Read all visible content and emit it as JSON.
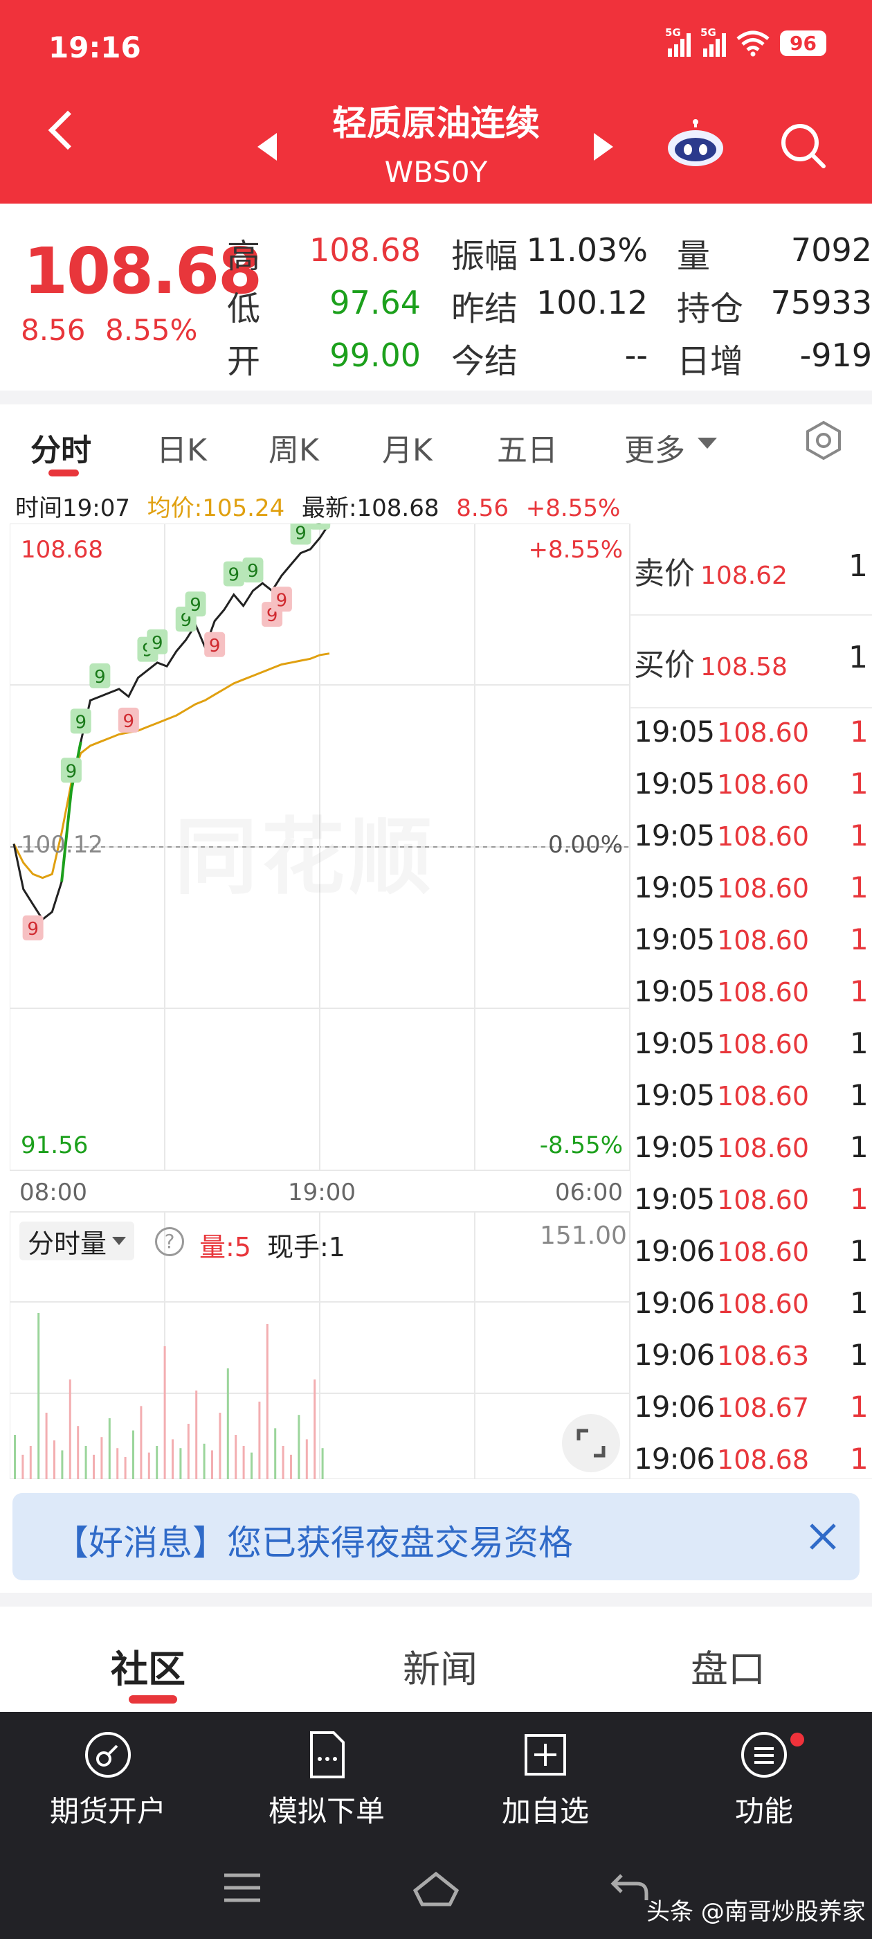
{
  "status_bar": {
    "time": "19:16",
    "signal1": "5G",
    "signal2": "5G",
    "battery": "96"
  },
  "header": {
    "title": "轻质原油连续",
    "code": "WBS0Y"
  },
  "quote": {
    "price": "108.68",
    "change": "8.56",
    "change_pct": "8.55%",
    "stats": [
      {
        "label": "高",
        "value": "108.68",
        "color": "red"
      },
      {
        "label": "低",
        "value": "97.64",
        "color": "green"
      },
      {
        "label": "开",
        "value": "99.00",
        "color": "green"
      },
      {
        "label": "振幅",
        "value": "11.03%",
        "color": "dark"
      },
      {
        "label": "昨结",
        "value": "100.12",
        "color": "dark"
      },
      {
        "label": "今结",
        "value": "--",
        "color": "dark"
      },
      {
        "label": "量",
        "value": "7092",
        "color": "dark"
      },
      {
        "label": "持仓",
        "value": "75933",
        "color": "dark"
      },
      {
        "label": "日增",
        "value": "-919",
        "color": "dark"
      }
    ]
  },
  "tabs": {
    "items": [
      "分时",
      "日K",
      "周K",
      "月K",
      "五日",
      "更多"
    ],
    "active": "分时"
  },
  "info_line": {
    "time": "时间19:07",
    "avg": "均价:105.24",
    "latest": "最新:108.68",
    "chg": "8.56",
    "pct": "+8.55%"
  },
  "chart": {
    "y_top": "108.68",
    "y_mid": "100.12",
    "y_bottom": "91.56",
    "pct_top": "+8.55%",
    "pct_mid": "0.00%",
    "pct_bottom": "-8.55%",
    "x_labels": [
      "08:00",
      "19:00",
      "06:00"
    ],
    "marker_label": "9",
    "watermark": "同花顺",
    "colors": {
      "price_line": "#222222",
      "up_segment": "#1ca01c",
      "avg_line": "#e0a010",
      "up": "#e8363b",
      "down": "#1ca01c"
    }
  },
  "chart_data": {
    "type": "line",
    "x_range": [
      "08:00",
      "06:00"
    ],
    "ylim": [
      91.56,
      108.68
    ],
    "reference": 100.12,
    "series": [
      {
        "name": "最新",
        "values": [
          100.2,
          99.0,
          98.6,
          98.2,
          98.4,
          99.2,
          101.6,
          102.9,
          104.0,
          104.1,
          104.2,
          104.3,
          104.1,
          104.6,
          104.8,
          105.0,
          104.9,
          105.3,
          105.6,
          106.0,
          105.4,
          106.1,
          106.4,
          106.8,
          106.5,
          106.9,
          107.1,
          106.9,
          107.3,
          107.6,
          107.9,
          108.0,
          108.3,
          108.68
        ]
      },
      {
        "name": "均价",
        "values": [
          100.2,
          99.7,
          99.4,
          99.3,
          99.4,
          100.5,
          101.8,
          102.6,
          102.8,
          102.9,
          103.0,
          103.1,
          103.15,
          103.2,
          103.3,
          103.4,
          103.5,
          103.6,
          103.75,
          103.9,
          104.0,
          104.15,
          104.3,
          104.45,
          104.55,
          104.65,
          104.75,
          104.85,
          104.95,
          105.0,
          105.05,
          105.1,
          105.2,
          105.24
        ]
      }
    ]
  },
  "volume": {
    "selector": "分时量",
    "help": "?",
    "qty": "量:5",
    "hand": "现手:1",
    "max": "151.00"
  },
  "order_book": {
    "sell": {
      "label": "卖价",
      "price": "108.62",
      "qty": "1"
    },
    "buy": {
      "label": "买价",
      "price": "108.58",
      "qty": "1"
    },
    "ticks": [
      {
        "time": "19:05",
        "price": "108.60",
        "qty": "1",
        "color": "#e8363b"
      },
      {
        "time": "19:05",
        "price": "108.60",
        "qty": "1",
        "color": "#e8363b"
      },
      {
        "time": "19:05",
        "price": "108.60",
        "qty": "1",
        "color": "#e8363b"
      },
      {
        "time": "19:05",
        "price": "108.60",
        "qty": "1",
        "color": "#e8363b"
      },
      {
        "time": "19:05",
        "price": "108.60",
        "qty": "1",
        "color": "#e8363b"
      },
      {
        "time": "19:05",
        "price": "108.60",
        "qty": "1",
        "color": "#e8363b"
      },
      {
        "time": "19:05",
        "price": "108.60",
        "qty": "1",
        "color": "#222222"
      },
      {
        "time": "19:05",
        "price": "108.60",
        "qty": "1",
        "color": "#222222"
      },
      {
        "time": "19:05",
        "price": "108.60",
        "qty": "1",
        "color": "#222222"
      },
      {
        "time": "19:05",
        "price": "108.60",
        "qty": "1",
        "color": "#e8363b"
      },
      {
        "time": "19:06",
        "price": "108.60",
        "qty": "1",
        "color": "#222222"
      },
      {
        "time": "19:06",
        "price": "108.60",
        "qty": "1",
        "color": "#222222"
      },
      {
        "time": "19:06",
        "price": "108.63",
        "qty": "1",
        "color": "#222222"
      },
      {
        "time": "19:06",
        "price": "108.67",
        "qty": "1",
        "color": "#e8363b"
      },
      {
        "time": "19:06",
        "price": "108.68",
        "qty": "1",
        "color": "#e8363b"
      }
    ]
  },
  "banner": {
    "text": "【好消息】您已获得夜盘交易资格",
    "close_icon": "close-icon"
  },
  "bottom_tabs": {
    "items": [
      "社区",
      "新闻",
      "盘口"
    ],
    "active": "社区"
  },
  "toolbar": {
    "items": [
      {
        "label": "期货开户",
        "icon": "compass-icon"
      },
      {
        "label": "模拟下单",
        "icon": "document-icon"
      },
      {
        "label": "加自选",
        "icon": "add-box-icon"
      },
      {
        "label": "功能",
        "icon": "menu-circle-icon"
      }
    ]
  },
  "credit": "头条 @南哥炒股养家"
}
